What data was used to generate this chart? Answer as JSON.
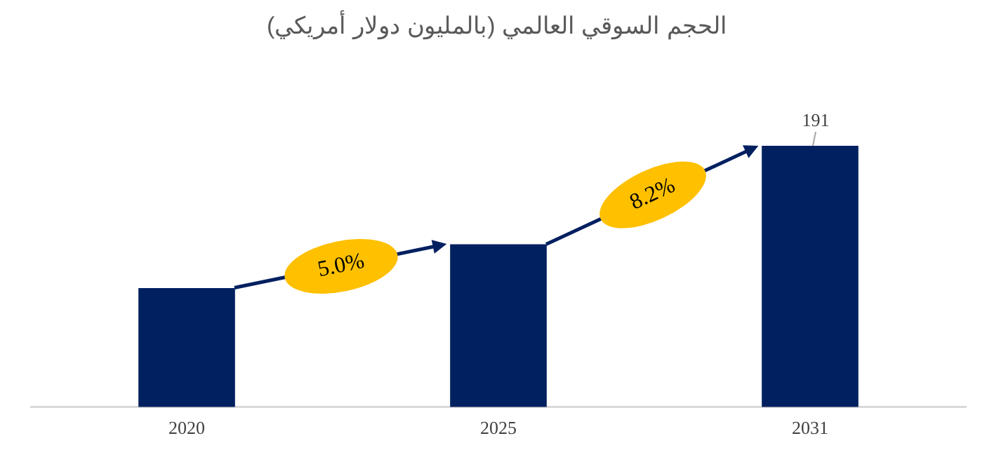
{
  "chart_data": {
    "type": "bar",
    "title": "الحجم السوقي العالمي (بالمليون دولار أمريكي)",
    "categories": [
      "2020",
      "2025",
      "2031"
    ],
    "values": [
      87,
      119,
      191
    ],
    "value_labels": [
      null,
      null,
      "191"
    ],
    "color": "#002060",
    "annotations": [
      "5.0%",
      "8.2%"
    ],
    "grid": false,
    "legend": false
  }
}
